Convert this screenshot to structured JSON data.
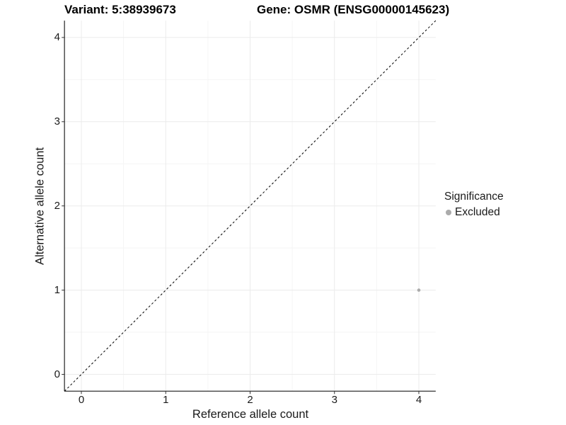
{
  "chart_data": {
    "type": "scatter",
    "titles": {
      "left": "Variant: 5:38939673",
      "right": "Gene: OSMR (ENSG00000145623)"
    },
    "xlabel": "Reference allele count",
    "ylabel": "Alternative allele count",
    "xlim": [
      -0.2,
      4.2
    ],
    "ylim": [
      -0.2,
      4.2
    ],
    "x_ticks": [
      0,
      1,
      2,
      3,
      4
    ],
    "y_ticks": [
      0,
      1,
      2,
      3,
      4
    ],
    "grid": {
      "major": true,
      "minor": true,
      "major_color": "#ebebeb",
      "minor_color": "#f5f5f5"
    },
    "axis_line_color": "#333333",
    "legend": {
      "title": "Significance",
      "position": "right",
      "entries": [
        {
          "label": "Excluded",
          "color": "#ababab"
        }
      ]
    },
    "series": [
      {
        "name": "Excluded",
        "color": "#ababab",
        "marker_radius": 2.3,
        "points": [
          {
            "x": 4,
            "y": 1
          }
        ]
      }
    ],
    "reference_line": {
      "kind": "y=x",
      "style": "dashed",
      "color": "#000000"
    }
  }
}
